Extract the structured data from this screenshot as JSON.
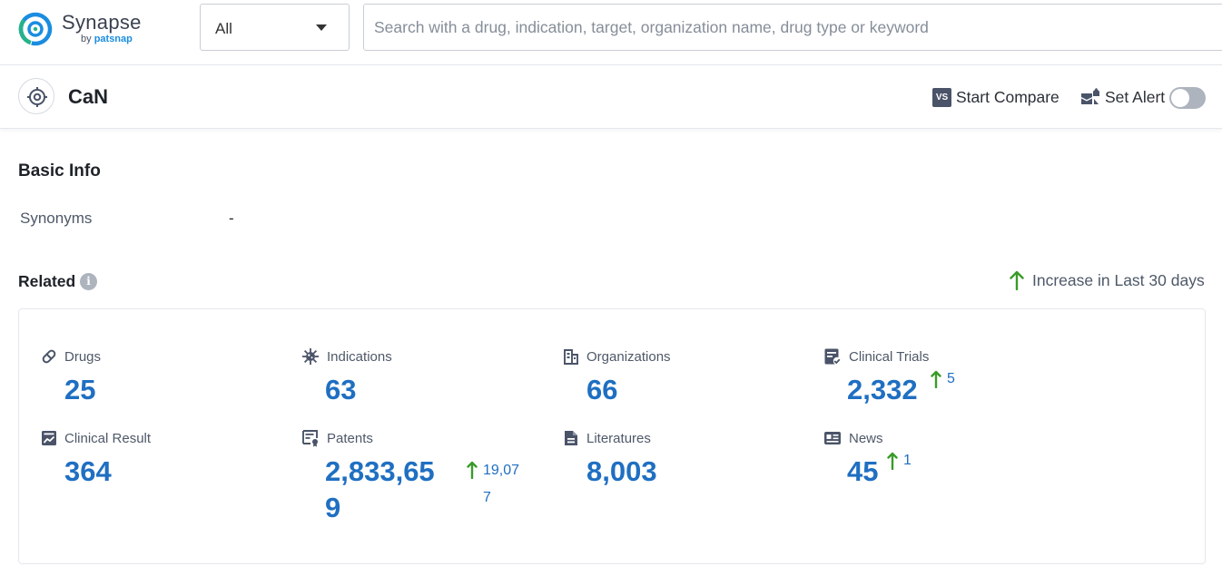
{
  "header": {
    "logo_name": "Synapse",
    "logo_by": "by",
    "logo_brand": "patsnap",
    "scope_value": "All",
    "search_placeholder": "Search with a drug, indication, target, organization name, drug type or keyword"
  },
  "title_bar": {
    "target_name": "CaN",
    "compare_icon_text": "VS",
    "compare_label": "Start Compare",
    "alert_label": "Set Alert",
    "alert_enabled": false
  },
  "basic_info": {
    "heading": "Basic Info",
    "synonyms_label": "Synonyms",
    "synonyms_value": "-"
  },
  "related": {
    "heading": "Related",
    "info_icon_text": "i",
    "legend_label": "Increase in Last 30 days",
    "stats": [
      {
        "label": "Drugs",
        "value": "25",
        "icon": "pill-icon"
      },
      {
        "label": "Indications",
        "value": "63",
        "icon": "virus-icon"
      },
      {
        "label": "Organizations",
        "value": "66",
        "icon": "building-icon"
      },
      {
        "label": "Clinical Trials",
        "value": "2,332",
        "increase": "5",
        "icon": "clipboard-icon"
      },
      {
        "label": "Clinical Result",
        "value": "364",
        "icon": "chart-report-icon"
      },
      {
        "label": "Patents",
        "value_line1": "2,833,65",
        "value_line2": "9",
        "increase_line1": "19,07",
        "increase_line2": "7",
        "icon": "patent-certificate-icon"
      },
      {
        "label": "Literatures",
        "value": "8,003",
        "icon": "document-icon"
      },
      {
        "label": "News",
        "value": "45",
        "increase": "1",
        "icon": "newspaper-icon"
      }
    ]
  },
  "colors": {
    "accent_blue": "#1f6fc2",
    "increase_green": "#3a9b2a",
    "icon_gray": "#4a5368"
  }
}
